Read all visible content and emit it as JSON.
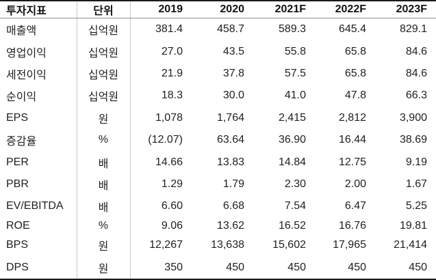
{
  "chart_data": {
    "type": "table",
    "title": "투자지표",
    "columns": [
      "투자지표",
      "단위",
      "2019",
      "2020",
      "2021F",
      "2022F",
      "2023F"
    ],
    "rows": [
      [
        "매출액",
        "십억원",
        "381.4",
        "458.7",
        "589.3",
        "645.4",
        "829.1"
      ],
      [
        "영업이익",
        "십억원",
        "27.0",
        "43.5",
        "55.8",
        "65.8",
        "84.6"
      ],
      [
        "세전이익",
        "십억원",
        "21.9",
        "37.8",
        "57.5",
        "65.8",
        "84.6"
      ],
      [
        "순이익",
        "십억원",
        "18.3",
        "30.0",
        "41.0",
        "47.8",
        "66.3"
      ],
      [
        "EPS",
        "원",
        "1,078",
        "1,764",
        "2,415",
        "2,812",
        "3,900"
      ],
      [
        "증감율",
        "%",
        "(12.07)",
        "63.64",
        "36.90",
        "16.44",
        "38.69"
      ],
      [
        "PER",
        "배",
        "14.66",
        "13.83",
        "14.84",
        "12.75",
        "9.19"
      ],
      [
        "PBR",
        "배",
        "1.29",
        "1.79",
        "2.30",
        "2.00",
        "1.67"
      ],
      [
        "EV/EBITDA",
        "배",
        "6.60",
        "6.68",
        "7.54",
        "6.47",
        "5.25"
      ],
      [
        "ROE",
        "%",
        "9.06",
        "13.62",
        "16.52",
        "16.76",
        "19.81"
      ],
      [
        "BPS",
        "원",
        "12,267",
        "13,638",
        "15,602",
        "17,965",
        "21,414"
      ],
      [
        "DPS",
        "원",
        "350",
        "450",
        "450",
        "450",
        "450"
      ]
    ]
  },
  "colors": {
    "border_heavy": "#1a1a1a",
    "border_light": "#c9c9c9",
    "header_rule": "#8f8f8f",
    "text": "#1e1e1e",
    "background": "#ffffff"
  }
}
